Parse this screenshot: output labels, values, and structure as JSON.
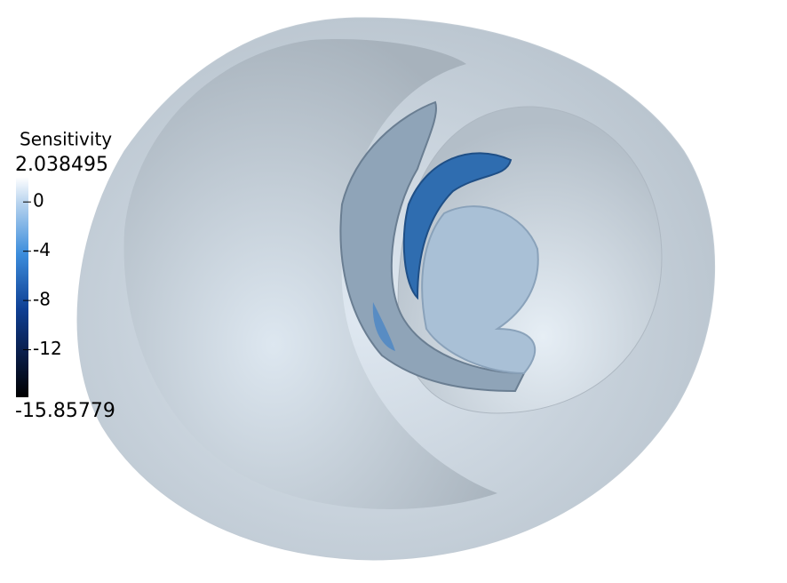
{
  "legend": {
    "title": "Sensitivity",
    "max": 2.038495,
    "min": -15.85779,
    "ticks": [
      0,
      -4,
      -8,
      -12
    ]
  }
}
